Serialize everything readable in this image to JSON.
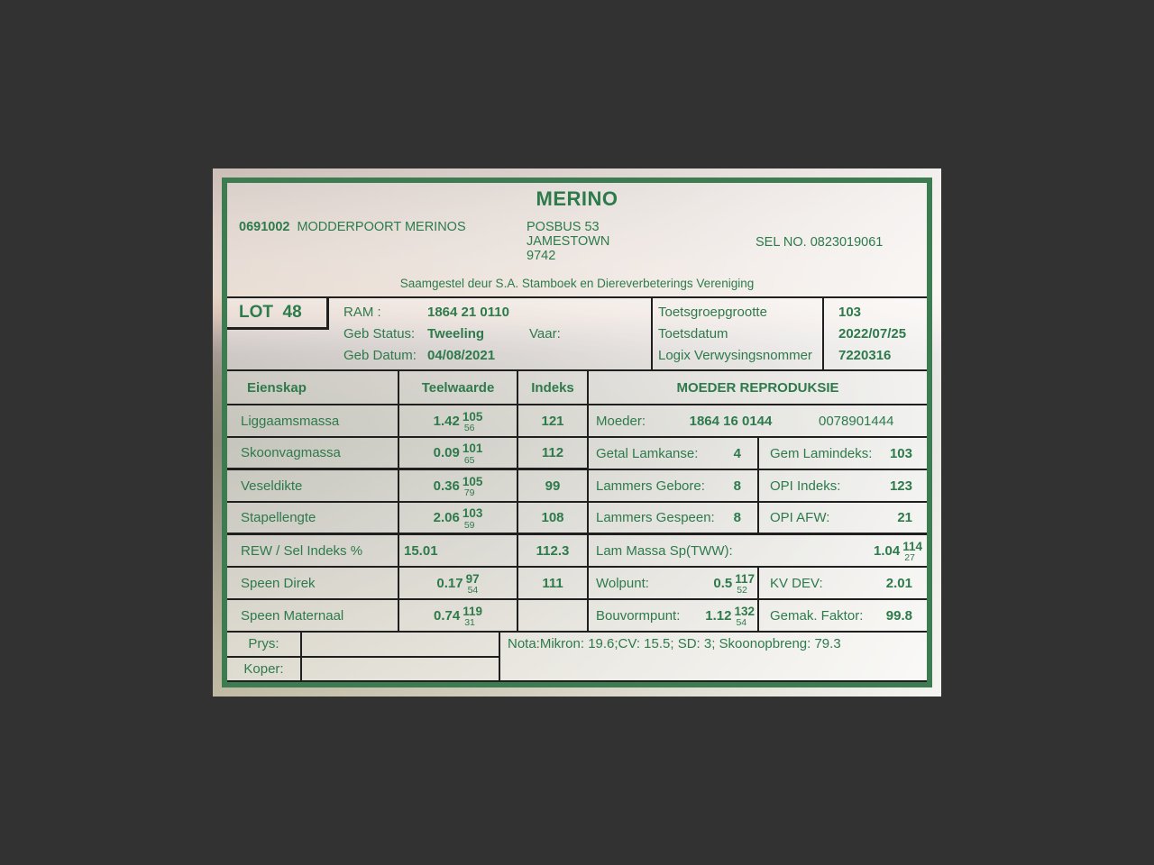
{
  "colors": {
    "text_green": "#2d7a4b",
    "frame_green": "#3d7c50",
    "rule_black": "#1f1f1f",
    "page_bg": "#323232"
  },
  "header": {
    "title": "MERINO",
    "breeder_number": "0691002",
    "breeder_name": "MODDERPOORT MERINOS",
    "address_line1": "POSBUS 53",
    "address_line2": "JAMESTOWN",
    "address_line3": "9742",
    "sel_no": "SEL NO. 0823019061",
    "subtitle": "Saamgestel deur S.A. Stamboek en Diereverbeterings Vereniging"
  },
  "lot": {
    "lot_label": "LOT  48",
    "ram_label": "RAM :",
    "ram_value": "1864 21 0110",
    "geb_status_label": "Geb Status:",
    "geb_status_value": "Tweeling",
    "vaar_label": "Vaar:",
    "geb_datum_label": "Geb Datum:",
    "geb_datum_value": "04/08/2021",
    "test_rows": [
      {
        "label": "Toetsgroepgrootte",
        "value": "103"
      },
      {
        "label": "Toetsdatum",
        "value": "2022/07/25"
      },
      {
        "label": "Logix Verwysingsnommer",
        "value": "7220316"
      }
    ]
  },
  "traits": {
    "col_eienskap": "Eienskap",
    "col_teelwaarde": "Teelwaarde",
    "col_indeks": "Indeks",
    "rows": [
      {
        "name": "Liggaamsmassa",
        "value": "1.42",
        "sup": "105",
        "sub": "56",
        "index": "121"
      },
      {
        "name": "Skoonvagmassa",
        "value": "0.09",
        "sup": "101",
        "sub": "65",
        "index": "112"
      },
      {
        "name": "Veseldikte",
        "value": "0.36",
        "sup": "105",
        "sub": "79",
        "index": "99"
      },
      {
        "name": "Stapellengte",
        "value": "2.06",
        "sup": "103",
        "sub": "59",
        "index": "108"
      },
      {
        "name": "REW / Sel Indeks %",
        "value": "15.01",
        "sup": "",
        "sub": "",
        "index": "112.3"
      },
      {
        "name": "Speen Direk",
        "value": "0.17",
        "sup": "97",
        "sub": "54",
        "index": "111"
      },
      {
        "name": "Speen Maternaal",
        "value": "0.74",
        "sup": "119",
        "sub": "31",
        "index": ""
      }
    ]
  },
  "moeder": {
    "header": "MOEDER REPRODUKSIE",
    "moeder_label": "Moeder:",
    "moeder_id": "1864 16 0144",
    "moeder_alt_id": "0078901444",
    "rows": [
      {
        "left_label": "Getal Lamkanse:",
        "left_value": "4",
        "right_label": "Gem Lamindeks:",
        "right_value": "103"
      },
      {
        "left_label": "Lammers Gebore:",
        "left_value": "8",
        "right_label": "OPI Indeks:",
        "right_value": "123"
      },
      {
        "left_label": "Lammers Gespeen:",
        "left_value": "8",
        "right_label": "OPI AFW:",
        "right_value": "21"
      }
    ],
    "tww_label": "Lam Massa Sp(TWW):",
    "tww_value": "1.04",
    "tww_sup": "114",
    "tww_sub": "27",
    "stat_rows": [
      {
        "left_label": "Wolpunt:",
        "left_value": "0.5",
        "left_sup": "117",
        "left_sub": "52",
        "right_label": "KV DEV:",
        "right_value": "2.01"
      },
      {
        "left_label": "Bouvormpunt:",
        "left_value": "1.12",
        "left_sup": "132",
        "left_sub": "54",
        "right_label": "Gemak. Faktor:",
        "right_value": "99.8"
      }
    ]
  },
  "footer": {
    "prys_label": "Prys:",
    "prys_value": "",
    "koper_label": "Koper:",
    "koper_value": "",
    "nota": "Nota:Mikron: 19.6;CV: 15.5; SD: 3; Skoonopbreng: 79.3"
  }
}
